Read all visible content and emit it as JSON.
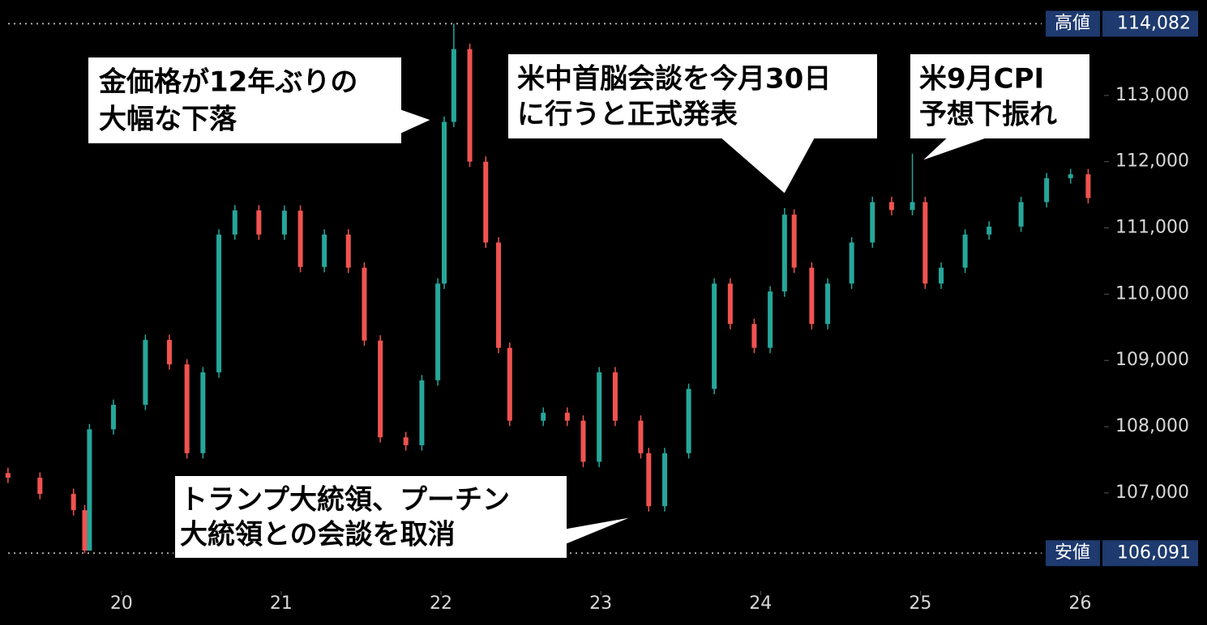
{
  "chart_data": {
    "type": "candlestick",
    "x": [
      19.29,
      19.49,
      19.7,
      19.77,
      19.8,
      19.95,
      20.15,
      20.3,
      20.41,
      20.51,
      20.61,
      20.71,
      20.86,
      21.02,
      21.12,
      21.27,
      21.42,
      21.52,
      21.62,
      21.78,
      21.88,
      21.98,
      22.02,
      22.08,
      22.18,
      22.28,
      22.36,
      22.43,
      22.64,
      22.79,
      22.89,
      22.99,
      23.09,
      23.25,
      23.3,
      23.4,
      23.55,
      23.71,
      23.81,
      23.96,
      24.06,
      24.15,
      24.21,
      24.32,
      24.42,
      24.57,
      24.7,
      24.82,
      24.95,
      25.03,
      25.13,
      25.28,
      25.43,
      25.63,
      25.79,
      25.94,
      26.05
    ],
    "open": [
      107300,
      107230,
      106985,
      106740,
      106130,
      107960,
      108330,
      109310,
      108940,
      107600,
      108820,
      110900,
      111265,
      110900,
      111260,
      110410,
      110900,
      110400,
      109300,
      107840,
      107720,
      108700,
      110160,
      112600,
      113700,
      112000,
      110780,
      109190,
      108090,
      108210,
      108090,
      107470,
      108820,
      108090,
      107600,
      106800,
      107600,
      108570,
      110160,
      109550,
      109190,
      110040,
      111200,
      110400,
      109550,
      110160,
      110780,
      111390,
      111270,
      111390,
      110160,
      110400,
      110900,
      111020,
      111390,
      111750,
      111810
    ],
    "high": [
      107380,
      107310,
      107065,
      106820,
      108040,
      108410,
      109390,
      109390,
      109020,
      108900,
      110980,
      111345,
      111345,
      111340,
      111340,
      110980,
      110980,
      110480,
      109380,
      107920,
      108780,
      110240,
      112680,
      114082,
      113780,
      112080,
      110860,
      109270,
      108290,
      108290,
      108170,
      108900,
      108900,
      108170,
      107680,
      107680,
      108650,
      110240,
      110240,
      109630,
      110120,
      111300,
      111280,
      110480,
      110240,
      110860,
      111470,
      111470,
      112120,
      111470,
      110480,
      110980,
      111100,
      111470,
      111830,
      111890,
      111890
    ],
    "low": [
      107150,
      106905,
      106660,
      106091,
      106130,
      107880,
      108250,
      108860,
      107520,
      107520,
      108740,
      110820,
      110820,
      110820,
      110330,
      110330,
      110320,
      109220,
      107760,
      107640,
      107640,
      108620,
      110080,
      112520,
      111920,
      110700,
      109110,
      108010,
      108010,
      108010,
      107390,
      107390,
      108010,
      107520,
      106720,
      106720,
      107520,
      108490,
      109470,
      109110,
      109110,
      109960,
      110320,
      109470,
      109470,
      110080,
      110700,
      111190,
      111190,
      110080,
      110080,
      110320,
      110820,
      110940,
      111310,
      111670,
      111370
    ],
    "close": [
      107230,
      106985,
      106740,
      106130,
      107960,
      108330,
      109310,
      108940,
      107600,
      108820,
      110900,
      111265,
      110900,
      111260,
      110410,
      110900,
      110400,
      109300,
      107840,
      107720,
      108700,
      110160,
      112600,
      113700,
      112000,
      110780,
      109190,
      108090,
      108210,
      108090,
      107470,
      108820,
      108090,
      107600,
      106800,
      107600,
      108570,
      110160,
      109550,
      109190,
      110040,
      111200,
      110400,
      109550,
      110160,
      110780,
      111390,
      111270,
      111390,
      110160,
      110400,
      110900,
      111020,
      111390,
      111750,
      111810,
      111450
    ],
    "up_color": "#26a69a",
    "down_color": "#ef5350",
    "xlim": [
      19.24,
      26.19
    ],
    "xticks": [
      20,
      21,
      22,
      23,
      24,
      25,
      26
    ],
    "ylim": [
      105520,
      114440
    ],
    "yticks": [
      {
        "value": 107000,
        "label": "107,000"
      },
      {
        "value": 108000,
        "label": "108,000"
      },
      {
        "value": 109000,
        "label": "109,000"
      },
      {
        "value": 110000,
        "label": "110,000"
      },
      {
        "value": 111000,
        "label": "111,000"
      },
      {
        "value": 112000,
        "label": "112,000"
      },
      {
        "value": 113000,
        "label": "113,000"
      }
    ],
    "high_marker": {
      "label": "高値",
      "value": 114082,
      "value_label": "114,082"
    },
    "low_marker": {
      "label": "安値",
      "value": 106091,
      "value_label": "106,091"
    },
    "annotations": [
      {
        "lines": [
          "金価格が12年ぶりの",
          "大幅な下落"
        ]
      },
      {
        "lines": [
          "米中首脳会談を今月30日",
          "に行うと正式発表"
        ]
      },
      {
        "lines": [
          "米9月CPI",
          "予想下振れ"
        ]
      },
      {
        "lines": [
          "トランプ大統領、プーチン",
          "大統領との会談を取消"
        ]
      }
    ]
  }
}
